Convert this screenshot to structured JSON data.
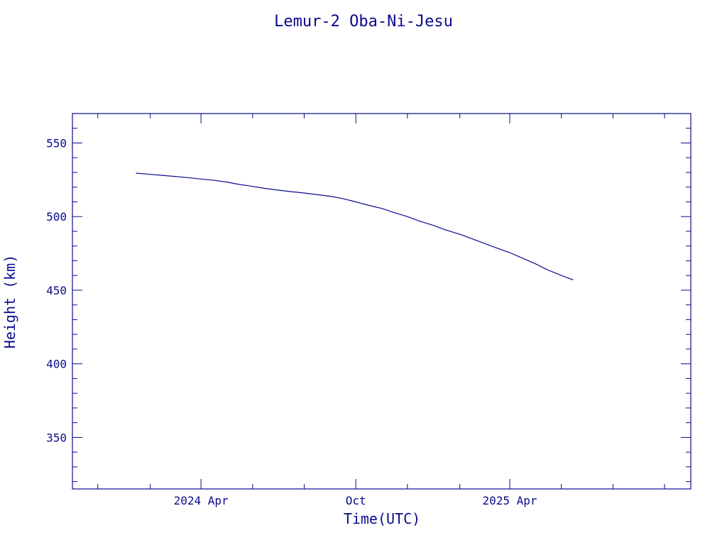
{
  "chart_data": {
    "type": "line",
    "title": "Lemur-2 Oba-Ni-Jesu",
    "xlabel": "Time(UTC)",
    "ylabel": "Height (km)",
    "xlim": [
      "2023-11-01",
      "2025-11-01"
    ],
    "ylim": [
      315,
      570
    ],
    "x_ticks_major": [
      {
        "date": "2024-04-01",
        "label": "2024 Apr"
      },
      {
        "date": "2024-10-01",
        "label": "Oct"
      },
      {
        "date": "2025-04-01",
        "label": "2025 Apr"
      }
    ],
    "x_ticks_minor": [
      "2023-12-01",
      "2024-02-01",
      "2024-06-01",
      "2024-08-01",
      "2024-12-01",
      "2025-02-01",
      "2025-06-01",
      "2025-08-01",
      "2025-10-01"
    ],
    "y_ticks_major": [
      350,
      400,
      450,
      500,
      550
    ],
    "y_ticks_minor": [
      320,
      330,
      340,
      360,
      370,
      380,
      390,
      410,
      420,
      430,
      440,
      460,
      470,
      480,
      490,
      510,
      520,
      530,
      540,
      560
    ],
    "grid": false,
    "colors": {
      "foreground": "#0a0a8c",
      "background": "#ffffff"
    },
    "series": [
      {
        "x": [
          "2024-01-15",
          "2024-02-01",
          "2024-02-15",
          "2024-03-01",
          "2024-03-15",
          "2024-04-01",
          "2024-04-15",
          "2024-05-01",
          "2024-05-15",
          "2024-06-01",
          "2024-06-15",
          "2024-07-01",
          "2024-07-15",
          "2024-08-01",
          "2024-08-15",
          "2024-09-01",
          "2024-09-15",
          "2024-10-01",
          "2024-10-15",
          "2024-11-01",
          "2024-11-15",
          "2024-12-01",
          "2024-12-15",
          "2025-01-01",
          "2025-01-15",
          "2025-02-01",
          "2025-02-15",
          "2025-03-01",
          "2025-03-15",
          "2025-04-01",
          "2025-04-15",
          "2025-05-01",
          "2025-05-15",
          "2025-06-01",
          "2025-06-15"
        ],
        "y": [
          529.5,
          528.7,
          528.0,
          527.3,
          526.5,
          525.5,
          524.8,
          523.5,
          522.0,
          520.5,
          519.2,
          518.0,
          517.0,
          516.0,
          515.0,
          513.8,
          512.3,
          510.0,
          507.8,
          505.5,
          502.8,
          500.0,
          497.0,
          494.0,
          491.0,
          488.0,
          485.0,
          482.0,
          479.0,
          475.5,
          472.0,
          468.0,
          464.0,
          460.0,
          457.0
        ]
      }
    ]
  }
}
